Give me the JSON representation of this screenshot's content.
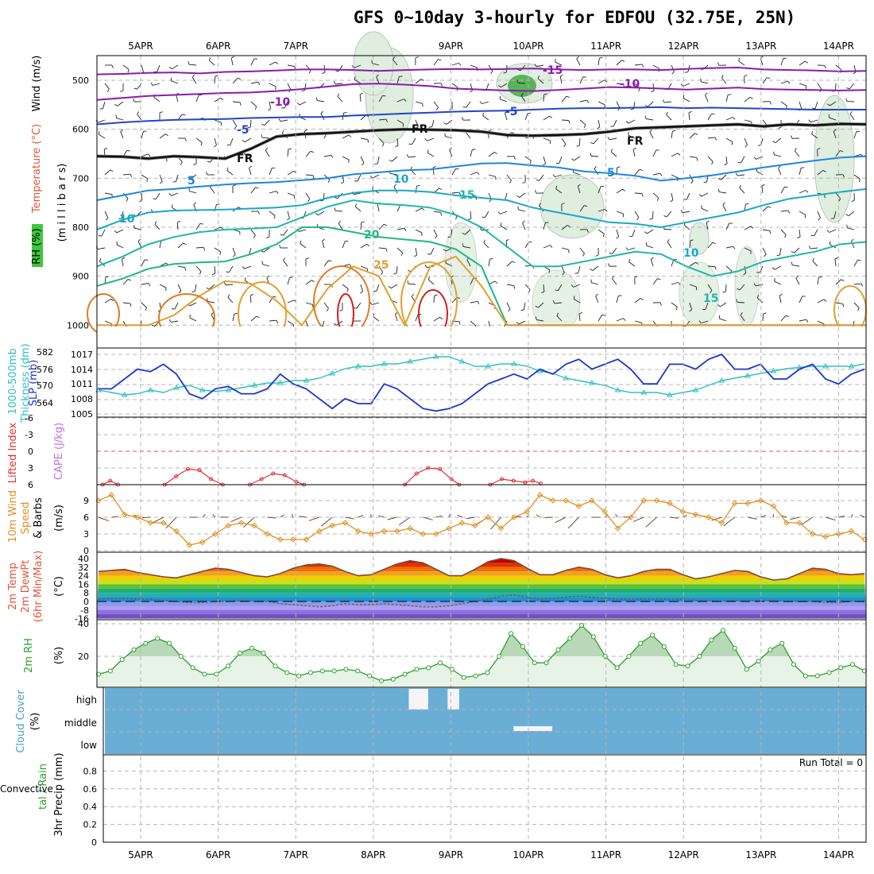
{
  "title": "GFS 0~10day 3-hourly for EDFOU (32.75E, 25N)",
  "dates": [
    "5APR",
    "6APR",
    "7APR",
    "8APR",
    "9APR",
    "10APR",
    "11APR",
    "12APR",
    "13APR",
    "14APR"
  ],
  "colors": {
    "grid": "#b4b4b4",
    "temp_label": "#e0553a",
    "wind_label": "#000000",
    "rh_green": "#3cc83c",
    "thickness": "#30c0c0",
    "slp": "#1a35d0",
    "lifted": "#e03030",
    "cape": "#c070e0",
    "wind10": "#e09020",
    "dew": "#7a5a4a",
    "rh2m": "#2aa02a",
    "cloud_blue": "#6aaed6",
    "cloud_lab": "#48a0c8",
    "precip_total": "#2aa02a",
    "precip_conv": "#e03030"
  },
  "labels": {
    "p1_rh": "RH (%)",
    "p1_temp": "Temperature (°C)",
    "p1_wind": "Wind (m/s)",
    "p1_mb": "(m i l l i b a r s)",
    "p2_thick_a": "1000-500mb",
    "p2_thick_b": "Thickness (dm)",
    "p2_slp": "SLP (mb)",
    "p3_li": "Lifted Index",
    "p3_cape": "CAPE (J/kg)",
    "p4_a": "10m Wind",
    "p4_b": "Speed",
    "p4_c": "& Barbs",
    "p4_unit": "(m/s)",
    "p5_a": "2m Temp",
    "p5_b": "2m DewPt",
    "p5_c": "(6hr Min/Max)",
    "p5_unit": "(°C)",
    "p6_a": "2m RH",
    "p6_unit": "(%)",
    "p7_a": "Cloud Cover",
    "p7_unit": "(%)",
    "p8_a": "tal / Rain",
    "p8_b": "Convective",
    "p8_c": "3hr Precip (mm)",
    "run_total": "Run Total = 0"
  },
  "chart_data": [
    {
      "panel": "upper-air cross section",
      "type": "heatmap",
      "ylabel": "millibars",
      "y_ticks": [
        500,
        600,
        700,
        800,
        900,
        1000
      ],
      "ylim": [
        1000,
        450
      ],
      "contour_labels": [
        "-15",
        "-10",
        "-10",
        "-5",
        "-5",
        "FR",
        "FR",
        "FR",
        "5",
        "5",
        "10",
        "10",
        "15",
        "20",
        "25",
        "10",
        "15"
      ],
      "isotherms": [
        {
          "t": -15,
          "color": "#8a1ab0",
          "p": [
            488,
            487,
            485,
            484,
            486,
            483,
            482,
            480,
            478,
            478,
            479,
            481,
            479,
            478,
            477,
            478,
            477,
            476,
            478,
            479,
            478,
            478,
            479,
            477,
            475,
            474,
            478,
            479,
            480,
            482,
            481
          ]
        },
        {
          "t": -10,
          "color": "#8a1ab0",
          "p": [
            540,
            536,
            532,
            530,
            528,
            526,
            525,
            522,
            518,
            513,
            508,
            507,
            509,
            512,
            517,
            519,
            521,
            522,
            520,
            517,
            514,
            515,
            517,
            519,
            517,
            515,
            518,
            519,
            520,
            521,
            520
          ]
        },
        {
          "t": -5,
          "color": "#2244cc",
          "p": [
            590,
            586,
            583,
            581,
            580,
            579,
            577,
            576,
            575,
            575,
            572,
            570,
            568,
            566,
            564,
            563,
            562,
            560,
            558,
            557,
            557,
            556,
            555,
            557,
            556,
            557,
            558,
            559,
            560,
            560,
            560
          ]
        },
        {
          "t": 0,
          "color": "#111111",
          "p": [
            655,
            656,
            660,
            655,
            657,
            660,
            640,
            615,
            610,
            608,
            605,
            602,
            600,
            601,
            602,
            605,
            612,
            613,
            612,
            610,
            605,
            598,
            596,
            594,
            592,
            590,
            594,
            590,
            592,
            589,
            590
          ]
        },
        {
          "t": 5,
          "color": "#1a88dd",
          "p": [
            745,
            735,
            725,
            722,
            717,
            713,
            710,
            708,
            704,
            700,
            692,
            688,
            684,
            682,
            676,
            670,
            669,
            674,
            678,
            686,
            690,
            695,
            705,
            700,
            694,
            686,
            678,
            671,
            664,
            658,
            655
          ]
        },
        {
          "t": 10,
          "color": "#1aa8c8",
          "p": [
            805,
            785,
            770,
            766,
            765,
            764,
            762,
            760,
            755,
            740,
            730,
            725,
            725,
            728,
            735,
            740,
            745,
            760,
            770,
            780,
            790,
            793,
            800,
            790,
            780,
            770,
            755,
            742,
            735,
            728,
            722
          ]
        },
        {
          "t": 15,
          "color": "#20b8a8",
          "p": [
            880,
            860,
            835,
            820,
            810,
            805,
            803,
            800,
            780,
            758,
            745,
            752,
            755,
            760,
            775,
            800,
            840,
            880,
            880,
            870,
            860,
            850,
            855,
            880,
            900,
            890,
            870,
            860,
            850,
            835,
            830
          ]
        },
        {
          "t": 20,
          "color": "#22b880",
          "p": [
            920,
            905,
            885,
            875,
            872,
            870,
            855,
            835,
            800,
            800,
            810,
            820,
            825,
            830,
            845,
            880,
            1000,
            1000,
            1000,
            1000,
            1000,
            1000,
            1000,
            1000,
            1000,
            1000,
            1000,
            1000,
            1000,
            1000,
            1000
          ]
        },
        {
          "t": 25,
          "color": "#e0a030",
          "p": [
            1000,
            1000,
            1000,
            980,
            940,
            910,
            915,
            950,
            1000,
            925,
            880,
            900,
            1000,
            880,
            860,
            920,
            1000,
            1000,
            1000,
            1000,
            1000,
            1000,
            1000,
            1000,
            1000,
            1000,
            1000,
            1000,
            1000,
            1000,
            1000
          ]
        }
      ]
    },
    {
      "panel": "thickness and SLP",
      "type": "line",
      "thickness_ticks": [
        "582",
        "576",
        "570",
        "564"
      ],
      "slp_ticks": [
        "1017",
        "1014",
        "1011",
        "1008",
        "1005"
      ],
      "series": [
        {
          "name": "1000-500mb Thickness (dm)",
          "color": "#30c0c0",
          "unit": "dm",
          "values": [
            566,
            565,
            564,
            564.5,
            566,
            565,
            567,
            568,
            566,
            565.5,
            566,
            567,
            568,
            569,
            569,
            570,
            570,
            571,
            573,
            575,
            576,
            576,
            577,
            577,
            578,
            579,
            580,
            580,
            578,
            576,
            576,
            577,
            577,
            576,
            574,
            573,
            571,
            570,
            569,
            568,
            566,
            565,
            565,
            565,
            564,
            565,
            566,
            568,
            570,
            571,
            572,
            573,
            574,
            575,
            575.5,
            576,
            576,
            576,
            576,
            577
          ]
        },
        {
          "name": "SLP (mb)",
          "color": "#1a35d0",
          "unit": "mb",
          "values": [
            1010,
            1010,
            1012,
            1014,
            1013.5,
            1015,
            1013,
            1009,
            1008,
            1010,
            1010.5,
            1009,
            1009,
            1010,
            1013,
            1011,
            1010,
            1008,
            1006,
            1008,
            1007,
            1007,
            1011,
            1010,
            1008,
            1006,
            1005.5,
            1006,
            1007,
            1009,
            1011,
            1012,
            1013,
            1012,
            1014,
            1013,
            1015,
            1016,
            1014,
            1015,
            1016,
            1014,
            1011,
            1011,
            1015,
            1015,
            1014,
            1016,
            1017,
            1014,
            1014,
            1015,
            1012,
            1012,
            1014,
            1015,
            1012,
            1011,
            1013,
            1014
          ]
        }
      ]
    },
    {
      "panel": "lifted index / CAPE",
      "type": "line",
      "ylim": [
        -6,
        6
      ],
      "y_ticks": [
        "-6",
        "-3",
        "0",
        "3",
        "6"
      ],
      "series": [
        {
          "name": "Lifted Index",
          "color": "#e03030",
          "segments": [
            [
              [
                0,
                6
              ],
              [
                0.1,
                5.3
              ],
              [
                0.2,
                6
              ]
            ],
            [
              [
                0.8,
                6
              ],
              [
                0.95,
                4.5
              ],
              [
                1.1,
                3.2
              ],
              [
                1.25,
                3.4
              ],
              [
                1.4,
                5
              ],
              [
                1.55,
                6
              ]
            ],
            [
              [
                1.9,
                6
              ],
              [
                2.05,
                5
              ],
              [
                2.2,
                4
              ],
              [
                2.35,
                4.3
              ],
              [
                2.5,
                5.5
              ],
              [
                2.6,
                6
              ]
            ],
            [
              [
                3.9,
                6
              ],
              [
                4.05,
                4
              ],
              [
                4.2,
                3
              ],
              [
                4.35,
                3.2
              ],
              [
                4.5,
                5
              ],
              [
                4.6,
                6
              ]
            ],
            [
              [
                5.0,
                6
              ],
              [
                5.15,
                5
              ],
              [
                5.3,
                5.3
              ],
              [
                5.45,
                5.6
              ],
              [
                5.55,
                5.3
              ],
              [
                5.65,
                5.8
              ]
            ]
          ]
        }
      ]
    },
    {
      "panel": "10m wind",
      "type": "line",
      "ylim": [
        0,
        10
      ],
      "y_ticks": [
        "0",
        "3",
        "6",
        "9"
      ],
      "series": [
        {
          "name": "10m Wind Speed",
          "color": "#e09020",
          "values": [
            9,
            10,
            6.5,
            6,
            5,
            5,
            3.5,
            1,
            1.5,
            3,
            4.5,
            5,
            4.5,
            3,
            2,
            2,
            2,
            3.5,
            4.5,
            5,
            3.5,
            3,
            3.5,
            3.5,
            4,
            3,
            3,
            4,
            5,
            4.5,
            6,
            4,
            6,
            7,
            10,
            9,
            9,
            8,
            9,
            7,
            4,
            6,
            9,
            9,
            8.5,
            7,
            6.5,
            6,
            5,
            8.5,
            8.5,
            9,
            8,
            5,
            5,
            3,
            2.5,
            3,
            3.5,
            2
          ]
        }
      ]
    },
    {
      "panel": "2m temperature",
      "type": "area",
      "ylim": [
        -16,
        40
      ],
      "y_ticks": [
        "40",
        "32",
        "24",
        "16",
        "8",
        "0",
        "-8",
        "-16"
      ],
      "series": [
        {
          "name": "2m Temp",
          "color": "#7a4a3a",
          "values": [
            28,
            29,
            30,
            27,
            25,
            23,
            22,
            25,
            28,
            31,
            30,
            27,
            24,
            23,
            26,
            31,
            34,
            35,
            33,
            28,
            24,
            25,
            30,
            35,
            38,
            36,
            30,
            24,
            24,
            30,
            37,
            40,
            38,
            31,
            25,
            25,
            29,
            32,
            30,
            25,
            22,
            24,
            28,
            30,
            30,
            25,
            21,
            23,
            26,
            29,
            28,
            23,
            20,
            21,
            26,
            31,
            30,
            26,
            25,
            26
          ]
        },
        {
          "name": "2m DewPt",
          "color": "#7a4a3a",
          "values": [
            2,
            3,
            3,
            2,
            2,
            1,
            0,
            -1,
            -1,
            0,
            0,
            1,
            0,
            0,
            -2,
            -3,
            -4,
            -5,
            -4,
            -2,
            -3,
            -3,
            -2,
            -3,
            -4,
            -5,
            -5,
            -4,
            -2,
            0,
            2,
            5,
            6,
            4,
            2,
            3,
            4,
            5,
            4,
            3,
            2,
            2,
            2,
            2,
            2,
            2,
            1,
            1,
            0,
            1,
            1,
            1,
            1,
            0,
            0,
            0,
            -1,
            -1,
            0,
            0
          ]
        }
      ]
    },
    {
      "panel": "2m RH",
      "type": "area",
      "ylim": [
        0,
        40
      ],
      "y_ticks": [
        "40",
        "20"
      ],
      "series": [
        {
          "name": "2m RH",
          "color": "#2aa02a",
          "values": [
            9,
            11,
            18,
            24,
            28,
            31,
            28,
            20,
            13,
            9,
            9,
            14,
            22,
            25,
            22,
            14,
            10,
            8,
            10,
            11,
            11,
            12,
            11,
            8,
            5,
            6,
            9,
            12,
            13,
            16,
            12,
            7,
            8,
            10,
            20,
            34,
            26,
            16,
            16,
            24,
            31,
            39,
            32,
            20,
            13,
            20,
            28,
            33,
            26,
            15,
            14,
            20,
            30,
            36,
            25,
            12,
            17,
            24,
            28,
            15,
            8,
            8,
            10,
            13,
            15,
            11
          ]
        }
      ]
    },
    {
      "panel": "cloud cover",
      "type": "heatmap",
      "categories": [
        "high",
        "middle",
        "low"
      ],
      "gaps": [
        {
          "level": "high",
          "from": 3.95,
          "to": 4.2
        },
        {
          "level": "high",
          "from": 4.45,
          "to": 4.6
        },
        {
          "level": "middle",
          "from": 5.3,
          "to": 5.8,
          "note": "partial"
        }
      ]
    },
    {
      "panel": "3hr precip",
      "type": "bar",
      "ylim": [
        0,
        1
      ],
      "y_ticks": [
        "0",
        "0.2",
        "0.4",
        "0.6",
        "0.8"
      ],
      "values": []
    }
  ]
}
